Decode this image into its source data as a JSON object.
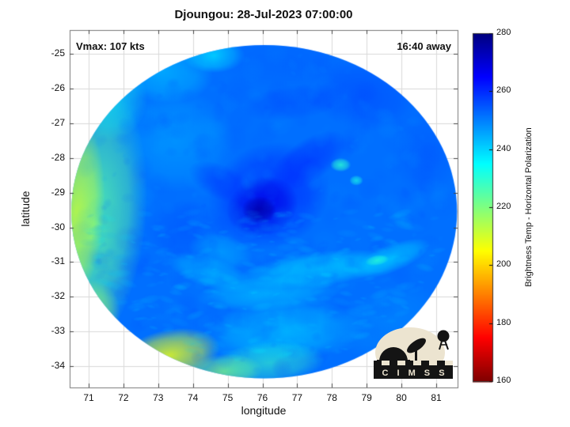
{
  "figure": {
    "title": "Djoungou: 28-Jul-2023 07:00:00",
    "annotation_vmax": "Vmax: 107 kts",
    "annotation_time": "16:40 away",
    "xlabel": "longitude",
    "ylabel": "latitude"
  },
  "logo": {
    "text": "C I M S S"
  },
  "chart_data": {
    "type": "heatmap",
    "title": "Djoungou: 28-Jul-2023 07:00:00",
    "xlabel": "longitude",
    "ylabel": "latitude",
    "xlim": [
      70.45,
      81.6
    ],
    "ylim": [
      -34.6,
      -24.3
    ],
    "xticks": [
      71,
      72,
      73,
      74,
      75,
      76,
      77,
      78,
      79,
      80,
      81
    ],
    "yticks": [
      -25,
      -26,
      -27,
      -28,
      -29,
      -30,
      -31,
      -32,
      -33,
      -34
    ],
    "grid": true,
    "annotations": [
      "Vmax: 107 kts",
      "16:40 away"
    ],
    "colorbar": {
      "label": "Brightness Temp - Horizontal Polarization",
      "min": 160,
      "max": 280,
      "ticks": [
        280,
        260,
        240,
        220,
        200,
        180,
        160
      ],
      "colormap": "jet"
    },
    "swath": {
      "center_lon": 76.05,
      "center_lat": -29.55,
      "radius_lon_deg": 5.55,
      "radius_lat_deg": 4.8,
      "base_temp_K": 252
    },
    "features": [
      {
        "name": "left-green-band",
        "lon": 71.15,
        "lat": -29.8,
        "rx": 1.5,
        "ry": 3.8,
        "rot": 6,
        "temp": 224,
        "alpha": 0.85
      },
      {
        "name": "left-yellow-edge",
        "lon": 70.65,
        "lat": -29.6,
        "rx": 0.8,
        "ry": 2.6,
        "rot": 4,
        "temp": 211,
        "alpha": 0.8
      },
      {
        "name": "left-yellow-low",
        "lon": 71.0,
        "lat": -32.6,
        "rx": 0.9,
        "ry": 1.1,
        "rot": 15,
        "temp": 216,
        "alpha": 0.7
      },
      {
        "name": "upperleft-green",
        "lon": 71.6,
        "lat": -26.3,
        "rx": 1.1,
        "ry": 1.2,
        "rot": 0,
        "temp": 232,
        "alpha": 0.6
      },
      {
        "name": "bottomleft-yellow",
        "lon": 73.3,
        "lat": -33.7,
        "rx": 1.5,
        "ry": 0.75,
        "rot": -12,
        "temp": 207,
        "alpha": 0.85
      },
      {
        "name": "bottom-yellow2",
        "lon": 74.9,
        "lat": -34.15,
        "rx": 1.1,
        "ry": 0.5,
        "rot": -4,
        "temp": 218,
        "alpha": 0.7
      },
      {
        "name": "bottom-green",
        "lon": 76.2,
        "lat": -33.9,
        "rx": 1.6,
        "ry": 0.6,
        "rot": -4,
        "temp": 228,
        "alpha": 0.6
      },
      {
        "name": "top-cyan",
        "lon": 73.1,
        "lat": -25.5,
        "rx": 1.5,
        "ry": 0.9,
        "rot": 8,
        "temp": 241,
        "alpha": 0.6
      },
      {
        "name": "top-cyan2",
        "lon": 74.6,
        "lat": -25.05,
        "rx": 0.9,
        "ry": 0.5,
        "rot": 0,
        "temp": 237,
        "alpha": 0.7
      },
      {
        "name": "midleft-cyan",
        "lon": 73.5,
        "lat": -27.5,
        "rx": 1.7,
        "ry": 1.5,
        "rot": 0,
        "temp": 244,
        "alpha": 0.5
      },
      {
        "name": "west-blue",
        "lon": 73.8,
        "lat": -30.1,
        "rx": 1.2,
        "ry": 0.9,
        "rot": 0,
        "temp": 256,
        "alpha": 0.5
      },
      {
        "name": "core-outer",
        "lon": 76.2,
        "lat": -29.1,
        "rx": 1.8,
        "ry": 1.5,
        "rot": -25,
        "temp": 261,
        "alpha": 0.75
      },
      {
        "name": "core-mid",
        "lon": 76.0,
        "lat": -29.4,
        "rx": 1.05,
        "ry": 0.85,
        "rot": -20,
        "temp": 268,
        "alpha": 0.85
      },
      {
        "name": "core-dark",
        "lon": 75.9,
        "lat": -29.5,
        "rx": 0.5,
        "ry": 0.4,
        "rot": 0,
        "temp": 275,
        "alpha": 0.9
      },
      {
        "name": "arm-northeast",
        "lon": 77.3,
        "lat": -28.1,
        "rx": 1.3,
        "ry": 0.6,
        "rot": -35,
        "temp": 261,
        "alpha": 0.6
      },
      {
        "name": "arm-west",
        "lon": 74.8,
        "lat": -28.7,
        "rx": 1.0,
        "ry": 0.5,
        "rot": 25,
        "temp": 259,
        "alpha": 0.55
      },
      {
        "name": "topright-deepblue",
        "lon": 78.9,
        "lat": -26.2,
        "rx": 1.6,
        "ry": 1.0,
        "rot": 12,
        "temp": 257,
        "alpha": 0.55
      },
      {
        "name": "right-deepblue",
        "lon": 80.7,
        "lat": -27.8,
        "rx": 1.0,
        "ry": 1.3,
        "rot": 0,
        "temp": 255,
        "alpha": 0.5
      },
      {
        "name": "top-blue",
        "lon": 76.6,
        "lat": -25.2,
        "rx": 2.0,
        "ry": 0.8,
        "rot": 0,
        "temp": 254,
        "alpha": 0.5
      },
      {
        "name": "rainband1",
        "lon": 77.6,
        "lat": -31.2,
        "rx": 2.3,
        "ry": 0.5,
        "rot": -7,
        "temp": 237,
        "alpha": 0.65
      },
      {
        "name": "rainband2",
        "lon": 79.7,
        "lat": -30.9,
        "rx": 1.2,
        "ry": 0.4,
        "rot": -22,
        "temp": 238,
        "alpha": 0.6
      },
      {
        "name": "rainband3",
        "lon": 76.2,
        "lat": -31.9,
        "rx": 2.1,
        "ry": 0.5,
        "rot": -4,
        "temp": 240,
        "alpha": 0.6
      },
      {
        "name": "rainband4",
        "lon": 74.5,
        "lat": -31.3,
        "rx": 1.3,
        "ry": 0.45,
        "rot": 18,
        "temp": 240,
        "alpha": 0.55
      },
      {
        "name": "lower-cyan",
        "lon": 76.6,
        "lat": -33.0,
        "rx": 2.3,
        "ry": 0.9,
        "rot": -4,
        "temp": 236,
        "alpha": 0.5
      },
      {
        "name": "southwest-cyan",
        "lon": 74.8,
        "lat": -30.7,
        "rx": 0.95,
        "ry": 0.5,
        "rot": 12,
        "temp": 243,
        "alpha": 0.5
      },
      {
        "name": "lowerright-blue",
        "lon": 79.6,
        "lat": -32.7,
        "rx": 1.6,
        "ry": 1.0,
        "rot": -22,
        "temp": 248,
        "alpha": 0.5
      },
      {
        "name": "bright-speck1",
        "lon": 78.25,
        "lat": -28.2,
        "rx": 0.3,
        "ry": 0.2,
        "rot": 0,
        "temp": 230,
        "alpha": 0.8
      },
      {
        "name": "bright-speck2",
        "lon": 78.7,
        "lat": -28.65,
        "rx": 0.2,
        "ry": 0.15,
        "rot": 0,
        "temp": 232,
        "alpha": 0.7
      },
      {
        "name": "bright-speck3",
        "lon": 79.3,
        "lat": -30.95,
        "rx": 0.35,
        "ry": 0.15,
        "rot": -10,
        "temp": 230,
        "alpha": 0.75
      },
      {
        "name": "top-streak",
        "lon": 76.9,
        "lat": -26.4,
        "rx": 1.5,
        "ry": 0.5,
        "rot": -8,
        "temp": 257,
        "alpha": 0.45
      }
    ],
    "grid_sample": {
      "lons": [
        71,
        72,
        73,
        74,
        75,
        76,
        77,
        78,
        79,
        80,
        81
      ],
      "lats": [
        -25,
        -26,
        -27,
        -28,
        -29,
        -30,
        -31,
        -32,
        -33,
        -34
      ],
      "values_K": [
        [
          null,
          null,
          248,
          238,
          246,
          252,
          255,
          254,
          252,
          null,
          null
        ],
        [
          null,
          240,
          244,
          242,
          250,
          254,
          256,
          252,
          257,
          253,
          null
        ],
        [
          228,
          238,
          246,
          250,
          252,
          256,
          254,
          250,
          256,
          254,
          250
        ],
        [
          222,
          240,
          248,
          252,
          258,
          263,
          259,
          248,
          246,
          252,
          253
        ],
        [
          217,
          236,
          246,
          252,
          260,
          271,
          262,
          250,
          244,
          250,
          252
        ],
        [
          214,
          232,
          244,
          252,
          256,
          266,
          258,
          246,
          240,
          246,
          250
        ],
        [
          217,
          230,
          240,
          243,
          240,
          239,
          242,
          238,
          236,
          239,
          248
        ],
        [
          219,
          228,
          234,
          240,
          237,
          240,
          238,
          237,
          240,
          244,
          null
        ],
        [
          null,
          221,
          214,
          230,
          238,
          236,
          240,
          238,
          242,
          null,
          null
        ],
        [
          null,
          null,
          211,
          218,
          228,
          232,
          235,
          null,
          null,
          null,
          null
        ]
      ]
    }
  }
}
